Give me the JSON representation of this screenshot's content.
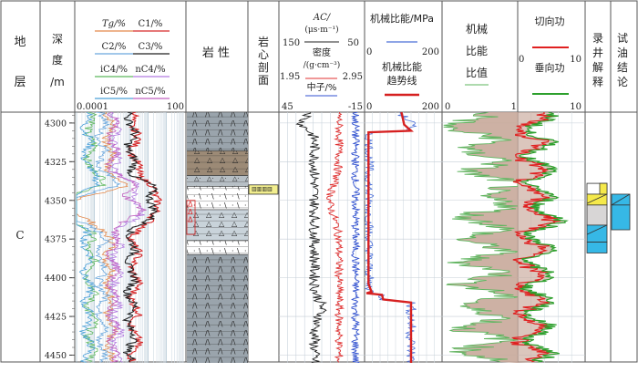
{
  "headers": {
    "formation": [
      "地",
      "层"
    ],
    "depth": [
      "深",
      "度",
      "/m"
    ],
    "gas_left": [
      "Tg/%",
      "C2/%",
      "iC4/%",
      "iC5/%"
    ],
    "gas_right": [
      "C1/%",
      "C3/%",
      "nC4/%",
      "nC5/%"
    ],
    "gas_scale": [
      "0.0001",
      "100"
    ],
    "lithology": "岩 性",
    "core": [
      "岩",
      "心",
      "剖",
      "面"
    ],
    "logs": {
      "ac_label": "AC/",
      "ac_unit": "(μs·m⁻¹)",
      "ac_scale": [
        "150",
        "50"
      ],
      "den_label": "密度",
      "den_unit": "/(g·cm⁻³)",
      "den_scale": [
        "1.95",
        "2.95"
      ],
      "cnl_label": "中子/%",
      "cnl_scale": [
        "45",
        "-15"
      ]
    },
    "mse": {
      "title": "机械比能/MPa",
      "scale": [
        "0",
        "200"
      ],
      "trend_title": [
        "机械比能",
        "趋势线"
      ],
      "trend_scale": [
        "0",
        "200"
      ]
    },
    "ratio": {
      "title": [
        "机械",
        "比能",
        "比值"
      ],
      "scale": [
        "0",
        "1"
      ]
    },
    "work": {
      "cut": "切向功",
      "vertical": "垂向功",
      "scale": [
        "0",
        "10"
      ],
      "scale2": "10"
    },
    "mud": [
      "录",
      "井",
      "解",
      "释"
    ],
    "test": [
      "试",
      "油",
      "结",
      "论"
    ]
  },
  "formation_value": "C",
  "colors": {
    "tg": "#e3884a",
    "c2": "#6aa7dd",
    "ic4": "#5cb85c",
    "ic5": "#4aa0d8",
    "c1": "#d62728",
    "c3": "#222222",
    "nc4": "#b27be0",
    "nc5": "#c060c0",
    "ac": "#222222",
    "den": "#e03030",
    "cnl": "#3050d0",
    "mse": "#4a6fd8",
    "trend": "#d62020",
    "ratio_fill": "#c8a89a",
    "ratio_line": "#5db45d",
    "cut": "#e02020",
    "vert": "#2da02d",
    "work_fill": "#c8a89a"
  },
  "chart_data": {
    "type": "line",
    "title": "",
    "depth_axis": {
      "label": "深度/m",
      "ticks": [
        4300,
        4325,
        4350,
        4375,
        4400,
        4425,
        4450
      ],
      "range": [
        4293,
        4455
      ]
    },
    "core_interval": [
      4340,
      4346
    ],
    "series": [
      {
        "name": "Tg/%",
        "track": "gas",
        "scale": "log",
        "range": [
          0.0001,
          100
        ]
      },
      {
        "name": "C1/%",
        "track": "gas",
        "scale": "log",
        "range": [
          0.0001,
          100
        ]
      },
      {
        "name": "C2/%",
        "track": "gas"
      },
      {
        "name": "C3/%",
        "track": "gas"
      },
      {
        "name": "iC4/%",
        "track": "gas"
      },
      {
        "name": "nC4/%",
        "track": "gas"
      },
      {
        "name": "iC5/%",
        "track": "gas"
      },
      {
        "name": "nC5/%",
        "track": "gas"
      },
      {
        "name": "AC/(μs·m⁻¹)",
        "track": "logs",
        "range": [
          150,
          50
        ]
      },
      {
        "name": "密度/(g·cm⁻³)",
        "track": "logs",
        "range": [
          1.95,
          2.95
        ]
      },
      {
        "name": "中子/%",
        "track": "logs",
        "range": [
          45,
          -15
        ]
      },
      {
        "name": "机械比能/MPa",
        "track": "mse",
        "range": [
          0,
          200
        ]
      },
      {
        "name": "机械比能趋势线",
        "track": "mse",
        "range": [
          0,
          200
        ],
        "points": [
          [
            4293,
            95
          ],
          [
            4296,
            98
          ],
          [
            4301,
            102
          ],
          [
            4305,
            120
          ],
          [
            4306,
            10
          ],
          [
            4404,
            10
          ],
          [
            4409,
            18
          ],
          [
            4410,
            5
          ],
          [
            4411,
            45
          ],
          [
            4414,
            48
          ],
          [
            4416,
            120
          ],
          [
            4455,
            120
          ]
        ]
      },
      {
        "name": "机械比能比值",
        "track": "ratio",
        "range": [
          0,
          1
        ]
      },
      {
        "name": "切向功",
        "track": "work",
        "range": [
          0,
          10
        ]
      },
      {
        "name": "垂向功",
        "track": "work",
        "range": [
          0,
          10
        ]
      }
    ],
    "interpretation": {
      "mud_logging": [
        {
          "from": 4339,
          "to": 4346,
          "fill": "#ffffff"
        },
        {
          "from": 4346,
          "to": 4353,
          "fill": "#f5e94a"
        },
        {
          "from": 4353,
          "to": 4366,
          "fill": "#d8d6d6"
        },
        {
          "from": 4366,
          "to": 4377,
          "fill": "#36b8e6"
        },
        {
          "from": 4377,
          "to": 4384,
          "fill": "#36b8e6"
        }
      ],
      "oil_test": [
        {
          "from": 4346,
          "to": 4353,
          "fill": "#36b8e6"
        },
        {
          "from": 4353,
          "to": 4369,
          "fill": "#36b8e6"
        }
      ]
    },
    "lithology": [
      {
        "from": 4293,
        "to": 4318,
        "type": "gray-mudstone"
      },
      {
        "from": 4318,
        "to": 4334,
        "type": "brown-sandstone"
      },
      {
        "from": 4334,
        "to": 4341,
        "type": "gray-sandstone"
      },
      {
        "from": 4341,
        "to": 4356,
        "type": "white-sandstone"
      },
      {
        "from": 4356,
        "to": 4376,
        "type": "light-sandstone"
      },
      {
        "from": 4376,
        "to": 4385,
        "type": "white-sandstone"
      },
      {
        "from": 4385,
        "to": 4455,
        "type": "gray-mudstone"
      }
    ]
  }
}
